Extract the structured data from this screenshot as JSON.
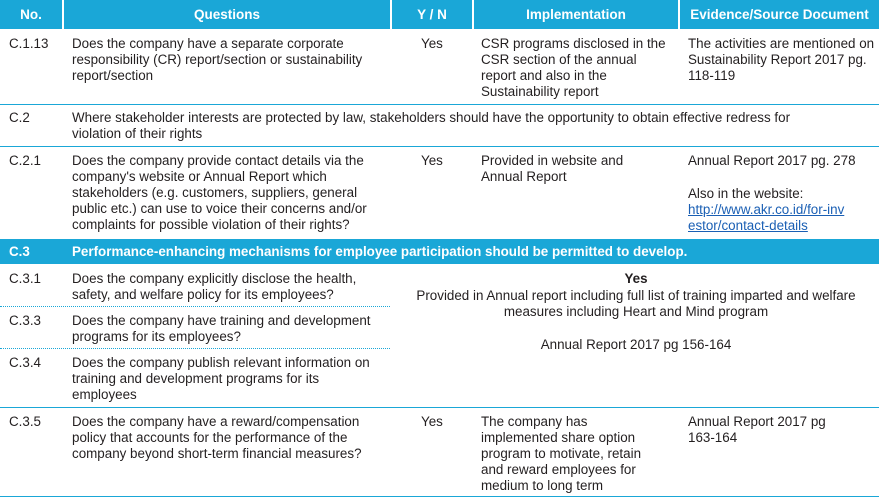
{
  "header": {
    "no": "No.",
    "questions": "Questions",
    "yn": "Y / N",
    "implementation": "Implementation",
    "evidence": "Evidence/Source Document"
  },
  "rows": {
    "c113": {
      "no": "C.1.13",
      "question": "Does the company have a separate corporate responsibility (CR) report/section or sustainability report/section",
      "yn": "Yes",
      "implementation": "CSR programs disclosed in the CSR section of the annual report and also in the Sustainability report",
      "evidence": "The activities are mentioned on Sustainability Report 2017 pg. 118-119"
    },
    "c2": {
      "no": "C.2",
      "text": "Where stakeholder interests are protected by law, stakeholders should have the opportunity to obtain effective redress for violation of their rights"
    },
    "c21": {
      "no": "C.2.1",
      "question": "Does the company provide contact details via the company's website or Annual Report which stakeholders (e.g. customers, suppliers, general public etc.) can use to voice their concerns and/or complaints for possible violation of their rights?",
      "yn": "Yes",
      "implementation": "Provided in website and Annual Report",
      "evidence_1": "Annual Report 2017 pg. 278",
      "evidence_2": "Also in the website:",
      "evidence_link": "http://www.akr.co.id/for-investor/contact-details"
    },
    "c3": {
      "no": "C.3",
      "text": "Performance-enhancing mechanisms for employee participation should be permitted to develop."
    },
    "c31": {
      "no": "C.3.1",
      "question": "Does the company explicitly disclose the health, safety, and welfare policy for its employees?"
    },
    "c33": {
      "no": "C.3.3",
      "question": "Does the company have training and development programs for its employees?"
    },
    "c34": {
      "no": "C.3.4",
      "question": "Does the company publish relevant information on training and development programs for its employees"
    },
    "c3_group": {
      "yn": "Yes",
      "text": "Provided in Annual report including full list of training imparted and welfare measures including Heart and Mind program",
      "reference": "Annual Report 2017 pg 156-164"
    },
    "c35": {
      "no": "C.3.5",
      "question": "Does the company have a reward/compensation policy that accounts for the performance of the company beyond short-term financial measures?",
      "yn": "Yes",
      "implementation": "The company has implemented share option program to motivate, retain and reward employees for medium to long term",
      "evidence": "Annual Report 2017 pg 163-164"
    }
  },
  "colors": {
    "accent": "#1aa7d7",
    "text": "#231f20",
    "link": "#1a5fb4"
  }
}
